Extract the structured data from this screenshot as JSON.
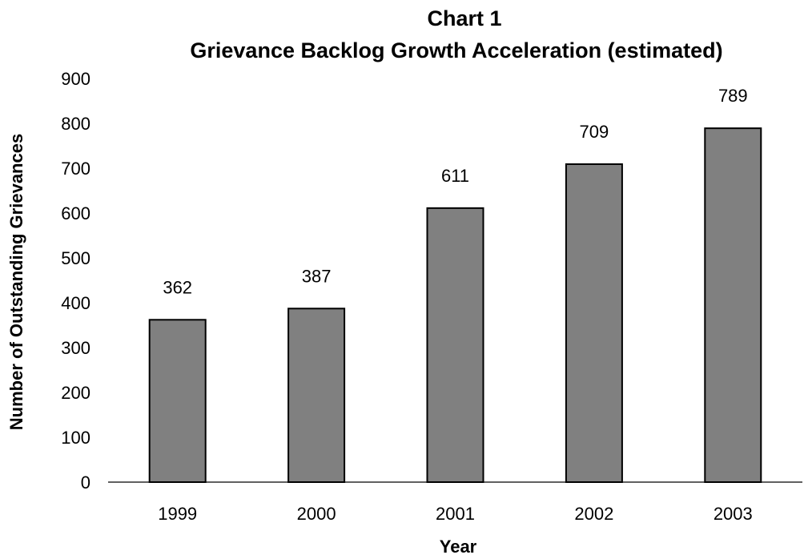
{
  "chart_data": {
    "type": "bar",
    "title": "Chart 1",
    "subtitle": "Grievance Backlog Growth Acceleration (estimated)",
    "xlabel": "Year",
    "ylabel": "Number of Outstanding Grievances",
    "categories": [
      "1999",
      "2000",
      "2001",
      "2002",
      "2003"
    ],
    "values": [
      362,
      387,
      611,
      709,
      789
    ],
    "data_labels": [
      "362",
      "387",
      "611",
      "709",
      "789"
    ],
    "ylim": [
      0,
      900
    ],
    "yticks": [
      "0",
      "100",
      "200",
      "300",
      "400",
      "500",
      "600",
      "700",
      "800",
      "900"
    ],
    "grid": false,
    "legend": "none",
    "colors": {
      "bar_fill": "#808080",
      "bar_stroke": "#000000",
      "axis": "#000000"
    }
  }
}
